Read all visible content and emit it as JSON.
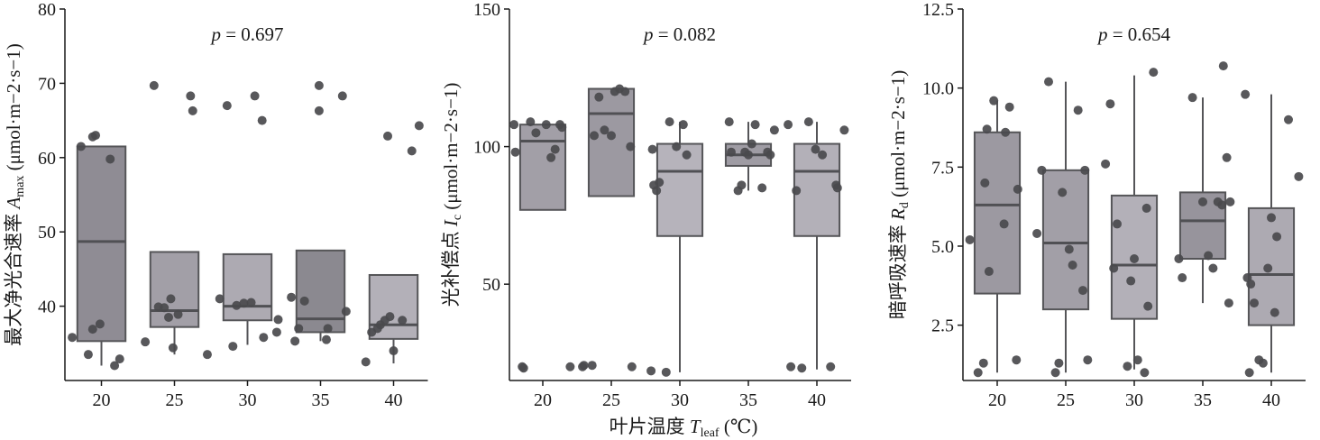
{
  "chart_data": [
    {
      "type": "box",
      "ylabel": {
        "zh": "最大净光合速率",
        "sym": "A",
        "sub": "max",
        "unit": "(μmol·m−2·s−1)"
      },
      "ylabel_text": "最大净光合速率 Amax (μmol·m⁻²·s⁻¹)",
      "p_label": "p = 0.697",
      "ylim": [
        30,
        80
      ],
      "yticks": [
        40,
        50,
        60,
        70,
        80
      ],
      "categories": [
        "20",
        "25",
        "30",
        "35",
        "40"
      ],
      "boxes": [
        {
          "q1": 35.3,
          "median": 48.7,
          "q3": 61.5,
          "wlow": 32.0,
          "whigh": 61.5,
          "color": "#8f8c94"
        },
        {
          "q1": 37.2,
          "median": 39.4,
          "q3": 47.3,
          "wlow": 33.5,
          "whigh": 47.3,
          "color": "#a29fa7"
        },
        {
          "q1": 38.1,
          "median": 40.0,
          "q3": 47.0,
          "wlow": 34.8,
          "whigh": 47.0,
          "color": "#adaab2"
        },
        {
          "q1": 36.5,
          "median": 38.3,
          "q3": 47.5,
          "wlow": 35.3,
          "whigh": 47.5,
          "color": "#8b8990"
        },
        {
          "q1": 35.6,
          "median": 37.5,
          "q3": 44.2,
          "wlow": 32.3,
          "whigh": 44.2,
          "color": "#b3b0b8"
        }
      ],
      "points": [
        [
          [
            -0.4,
            35.8
          ],
          [
            -0.18,
            33.5
          ],
          [
            -0.28,
            61.5
          ],
          [
            -0.12,
            62.8
          ],
          [
            -0.08,
            63.0
          ],
          [
            -0.12,
            36.9
          ],
          [
            -0.02,
            37.6
          ],
          [
            0.12,
            59.8
          ],
          [
            0.18,
            32.0
          ],
          [
            0.25,
            32.9
          ]
        ],
        [
          [
            -0.4,
            35.2
          ],
          [
            -0.22,
            39.9
          ],
          [
            -0.05,
            41.0
          ],
          [
            -0.14,
            39.8
          ],
          [
            -0.28,
            69.7
          ],
          [
            -0.08,
            38.5
          ],
          [
            0.22,
            68.3
          ],
          [
            0.25,
            66.3
          ],
          [
            -0.02,
            34.4
          ],
          [
            0.05,
            38.9
          ],
          [
            0.45,
            33.5
          ]
        ],
        [
          [
            -0.38,
            41.0
          ],
          [
            -0.28,
            67.0
          ],
          [
            -0.15,
            40.1
          ],
          [
            -0.05,
            40.4
          ],
          [
            0.05,
            40.5
          ],
          [
            0.1,
            68.3
          ],
          [
            -0.2,
            34.6
          ],
          [
            0.2,
            65.0
          ],
          [
            0.22,
            35.8
          ],
          [
            0.4,
            36.5
          ],
          [
            0.42,
            38.2
          ]
        ],
        [
          [
            -0.4,
            41.2
          ],
          [
            -0.35,
            35.3
          ],
          [
            -0.3,
            37.0
          ],
          [
            -0.22,
            40.7
          ],
          [
            -0.02,
            69.7
          ],
          [
            -0.02,
            66.3
          ],
          [
            0.1,
            37.0
          ],
          [
            0.08,
            35.5
          ],
          [
            0.3,
            68.3
          ],
          [
            0.35,
            39.3
          ]
        ],
        [
          [
            -0.38,
            32.5
          ],
          [
            -0.3,
            36.5
          ],
          [
            -0.22,
            37.0
          ],
          [
            -0.18,
            37.5
          ],
          [
            -0.12,
            38.1
          ],
          [
            -0.08,
            62.9
          ],
          [
            -0.05,
            38.6
          ],
          [
            0.0,
            34.0
          ],
          [
            0.12,
            38.1
          ],
          [
            0.25,
            60.9
          ],
          [
            0.35,
            64.3
          ]
        ]
      ]
    },
    {
      "type": "box",
      "ylabel": {
        "zh": "光补偿点",
        "sym": "I",
        "sub": "c",
        "unit": "(μmol·m−2·s−1)"
      },
      "ylabel_text": "光补偿点 Ic (μmol·m⁻²·s⁻¹)",
      "p_label": "p = 0.082",
      "ylim": [
        15,
        150
      ],
      "yticks": [
        50,
        100,
        150
      ],
      "categories": [
        "20",
        "25",
        "30",
        "35",
        "40"
      ],
      "boxes": [
        {
          "q1": 77.0,
          "median": 102.0,
          "q3": 108.0,
          "wlow": 77.0,
          "whigh": 108.0,
          "color": "#a29fa7"
        },
        {
          "q1": 82.0,
          "median": 112.0,
          "q3": 121.0,
          "wlow": 82.0,
          "whigh": 121.0,
          "color": "#9c99a1"
        },
        {
          "q1": 67.5,
          "median": 91.0,
          "q3": 101.0,
          "wlow": 18.0,
          "whigh": 109.0,
          "color": "#b6b3bb"
        },
        {
          "q1": 93.0,
          "median": 97.0,
          "q3": 101.0,
          "wlow": 84.0,
          "whigh": 109.0,
          "color": "#9f9ca4"
        },
        {
          "q1": 67.5,
          "median": 91.0,
          "q3": 101.0,
          "wlow": 19.0,
          "whigh": 109.0,
          "color": "#b3b0b8"
        }
      ],
      "points": [
        [
          [
            -0.42,
            108.0
          ],
          [
            -0.4,
            98.0
          ],
          [
            -0.3,
            20.0
          ],
          [
            -0.28,
            19.5
          ],
          [
            -0.18,
            109.0
          ],
          [
            -0.1,
            105.0
          ],
          [
            0.05,
            108.0
          ],
          [
            0.12,
            96.0
          ],
          [
            0.18,
            99.0
          ],
          [
            0.25,
            108.0
          ],
          [
            0.28,
            107.0
          ],
          [
            0.4,
            20.0
          ]
        ],
        [
          [
            -0.42,
            20.0
          ],
          [
            -0.4,
            20.5
          ],
          [
            -0.28,
            20.5
          ],
          [
            -0.25,
            104.0
          ],
          [
            -0.18,
            118.0
          ],
          [
            -0.1,
            106.0
          ],
          [
            0.0,
            104.0
          ],
          [
            0.05,
            120.0
          ],
          [
            0.12,
            121.0
          ],
          [
            0.2,
            120.0
          ],
          [
            0.28,
            100.0
          ],
          [
            0.3,
            20.0
          ]
        ],
        [
          [
            -0.42,
            18.5
          ],
          [
            -0.4,
            99.0
          ],
          [
            -0.38,
            86.0
          ],
          [
            -0.34,
            84.0
          ],
          [
            -0.3,
            87.0
          ],
          [
            -0.2,
            18.0
          ],
          [
            -0.15,
            109.0
          ],
          [
            -0.05,
            100.0
          ],
          [
            0.05,
            108.0
          ],
          [
            0.1,
            97.0
          ]
        ],
        [
          [
            -0.28,
            109.0
          ],
          [
            -0.25,
            98.0
          ],
          [
            -0.15,
            84.0
          ],
          [
            -0.1,
            86.0
          ],
          [
            -0.05,
            98.0
          ],
          [
            0.0,
            97.0
          ],
          [
            0.05,
            101.0
          ],
          [
            0.1,
            108.0
          ],
          [
            0.2,
            85.0
          ],
          [
            0.28,
            98.0
          ],
          [
            0.32,
            97.0
          ],
          [
            0.38,
            106.0
          ]
        ],
        [
          [
            -0.42,
            108.0
          ],
          [
            -0.38,
            20.0
          ],
          [
            -0.3,
            84.0
          ],
          [
            -0.22,
            19.5
          ],
          [
            -0.12,
            109.0
          ],
          [
            -0.02,
            99.0
          ],
          [
            0.08,
            97.0
          ],
          [
            0.2,
            20.0
          ],
          [
            0.28,
            86.0
          ],
          [
            0.3,
            85.0
          ],
          [
            0.4,
            106.0
          ]
        ]
      ]
    },
    {
      "type": "box",
      "ylabel": {
        "zh": "暗呼吸速率",
        "sym": "R",
        "sub": "d",
        "unit": "(μmol·m−2·s−1)"
      },
      "ylabel_text": "暗呼吸速率 Rd (μmol·m⁻²·s⁻¹)",
      "p_label": "p = 0.654",
      "ylim": [
        0.75,
        12.5
      ],
      "yticks": [
        2.5,
        5.0,
        7.5,
        10.0,
        12.5
      ],
      "categories": [
        "20",
        "25",
        "30",
        "35",
        "40"
      ],
      "boxes": [
        {
          "q1": 3.5,
          "median": 6.3,
          "q3": 8.6,
          "wlow": 1.0,
          "whigh": 9.6,
          "color": "#9c99a1"
        },
        {
          "q1": 3.0,
          "median": 5.1,
          "q3": 7.4,
          "wlow": 1.0,
          "whigh": 10.2,
          "color": "#a29fa7"
        },
        {
          "q1": 2.7,
          "median": 4.4,
          "q3": 6.6,
          "wlow": 1.1,
          "whigh": 10.4,
          "color": "#b3b0b8"
        },
        {
          "q1": 4.6,
          "median": 5.8,
          "q3": 6.7,
          "wlow": 3.2,
          "whigh": 9.7,
          "color": "#97949c"
        },
        {
          "q1": 2.5,
          "median": 4.1,
          "q3": 6.2,
          "wlow": 1.0,
          "whigh": 9.8,
          "color": "#adaab2"
        }
      ],
      "points": [
        [
          [
            -0.4,
            5.2
          ],
          [
            -0.28,
            1.0
          ],
          [
            -0.2,
            1.3
          ],
          [
            -0.18,
            7.0
          ],
          [
            -0.15,
            8.7
          ],
          [
            -0.12,
            4.2
          ],
          [
            -0.05,
            9.6
          ],
          [
            0.1,
            5.7
          ],
          [
            0.12,
            8.6
          ],
          [
            0.18,
            9.4
          ],
          [
            0.28,
            1.4
          ],
          [
            0.3,
            6.8
          ]
        ],
        [
          [
            -0.42,
            5.4
          ],
          [
            -0.35,
            7.4
          ],
          [
            -0.25,
            10.2
          ],
          [
            -0.15,
            1.0
          ],
          [
            -0.1,
            1.3
          ],
          [
            -0.05,
            6.7
          ],
          [
            0.05,
            4.9
          ],
          [
            0.1,
            4.4
          ],
          [
            0.18,
            9.3
          ],
          [
            0.25,
            3.6
          ],
          [
            0.28,
            7.4
          ],
          [
            0.32,
            1.4
          ]
        ],
        [
          [
            -0.42,
            7.6
          ],
          [
            -0.35,
            9.5
          ],
          [
            -0.3,
            4.3
          ],
          [
            -0.25,
            5.7
          ],
          [
            -0.1,
            1.2
          ],
          [
            -0.05,
            3.9
          ],
          [
            0.0,
            4.6
          ],
          [
            0.05,
            1.4
          ],
          [
            0.15,
            1.0
          ],
          [
            0.18,
            6.2
          ],
          [
            0.2,
            3.1
          ],
          [
            0.28,
            10.5
          ]
        ],
        [
          [
            -0.35,
            4.6
          ],
          [
            -0.3,
            4.0
          ],
          [
            -0.15,
            9.7
          ],
          [
            0.0,
            6.4
          ],
          [
            0.08,
            4.7
          ],
          [
            0.15,
            4.3
          ],
          [
            0.22,
            6.4
          ],
          [
            0.28,
            6.3
          ],
          [
            0.3,
            10.7
          ],
          [
            0.35,
            7.8
          ],
          [
            0.38,
            3.2
          ],
          [
            0.4,
            6.4
          ]
        ],
        [
          [
            -0.38,
            9.8
          ],
          [
            -0.35,
            4.0
          ],
          [
            -0.32,
            1.0
          ],
          [
            -0.3,
            3.8
          ],
          [
            -0.25,
            3.2
          ],
          [
            -0.18,
            1.4
          ],
          [
            -0.12,
            1.3
          ],
          [
            -0.05,
            4.3
          ],
          [
            0.0,
            5.9
          ],
          [
            0.05,
            2.9
          ],
          [
            0.08,
            5.3
          ],
          [
            0.25,
            9.0
          ],
          [
            0.4,
            7.2
          ]
        ]
      ]
    }
  ],
  "xlabel": {
    "zh": "叶片温度",
    "sym": "T",
    "sub": "leaf",
    "unit": "(℃)"
  },
  "xlabel_text": "叶片温度 Tleaf (℃)",
  "colors": {
    "axis": "#1a1a1a",
    "point": "#4a4a4d",
    "edge": "#555558",
    "median": "#505054"
  }
}
